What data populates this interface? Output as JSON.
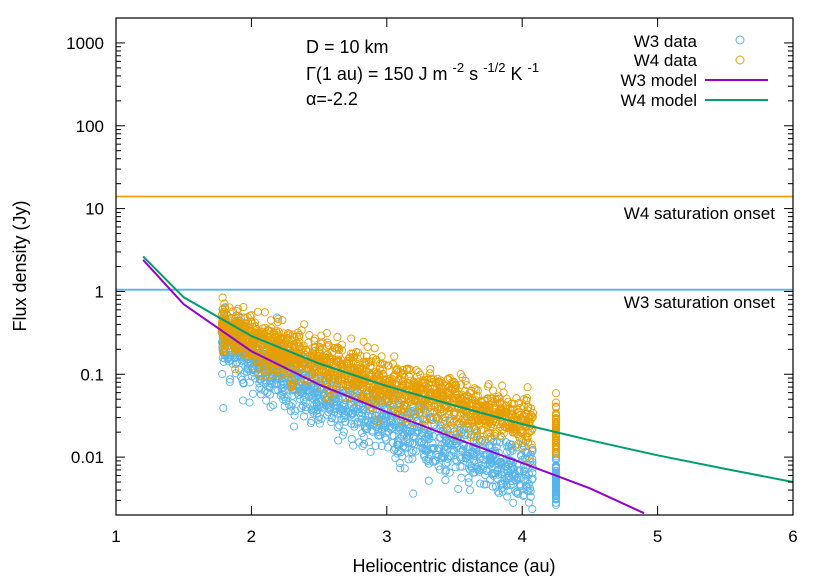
{
  "chart_data": {
    "type": "scatter",
    "title": "",
    "xlabel": "Heliocentric distance (au)",
    "ylabel": "Flux density (Jy)",
    "xlim": [
      1,
      6
    ],
    "ylim": [
      0.002,
      2000
    ],
    "y_scale": "log",
    "x_ticks": [
      1,
      2,
      3,
      4,
      5,
      6
    ],
    "x_tick_labels": [
      "1",
      "2",
      "3",
      "4",
      "5",
      "6"
    ],
    "y_ticks": [
      0.01,
      0.1,
      1,
      10,
      100,
      1000
    ],
    "y_tick_labels": [
      "0.01",
      "0.1",
      "1",
      "10",
      "100",
      "1000"
    ],
    "grid": false,
    "legend_position": "top-right",
    "annotations": {
      "line1": "D = 10 km",
      "line2_prefix": "Γ(1 au) = 150 J m",
      "line2_sup1": "-2",
      "line2_mid1": "s",
      "line2_sup2": "-1/2",
      "line2_mid2": "K",
      "line2_sup3": "-1",
      "line3": "α=-2.2"
    },
    "series": [
      {
        "name": "W3 data",
        "kind": "points",
        "color": "#56b4e9",
        "r_range": [
          1.78,
          4.3
        ],
        "center": [
          [
            1.8,
            0.26
          ],
          [
            2.2,
            0.1
          ],
          [
            2.6,
            0.048
          ],
          [
            3.0,
            0.028
          ],
          [
            3.4,
            0.015
          ],
          [
            3.8,
            0.0085
          ],
          [
            4.2,
            0.005
          ]
        ],
        "spread": 0.7
      },
      {
        "name": "W4 data",
        "kind": "points",
        "color": "#e69f00",
        "r_range": [
          1.78,
          4.3
        ],
        "center": [
          [
            1.8,
            0.36
          ],
          [
            2.2,
            0.2
          ],
          [
            2.6,
            0.12
          ],
          [
            3.0,
            0.075
          ],
          [
            3.4,
            0.05
          ],
          [
            3.8,
            0.033
          ],
          [
            4.2,
            0.021
          ]
        ],
        "spread": 0.55
      },
      {
        "name": "W3 model",
        "kind": "line",
        "color": "#9400d3",
        "x": [
          1.2,
          1.5,
          2.0,
          2.5,
          3.0,
          3.5,
          4.0,
          4.5,
          4.9
        ],
        "y": [
          2.4,
          0.7,
          0.19,
          0.075,
          0.035,
          0.017,
          0.0085,
          0.0042,
          0.0021
        ]
      },
      {
        "name": "W4 model",
        "kind": "line",
        "color": "#009e73",
        "x": [
          1.2,
          1.5,
          2.0,
          2.5,
          3.0,
          3.5,
          4.0,
          4.5,
          5.0,
          5.5,
          6.0
        ],
        "y": [
          2.65,
          0.85,
          0.29,
          0.135,
          0.072,
          0.042,
          0.025,
          0.016,
          0.0105,
          0.0072,
          0.005
        ]
      }
    ],
    "hlines": [
      {
        "name": "W4 saturation",
        "y": 14,
        "color": "#f0a000",
        "label": "W4 saturation onset"
      },
      {
        "name": "W3 saturation",
        "y": 1.05,
        "color": "#56b4e9",
        "label": "W3 saturation onset"
      }
    ]
  }
}
